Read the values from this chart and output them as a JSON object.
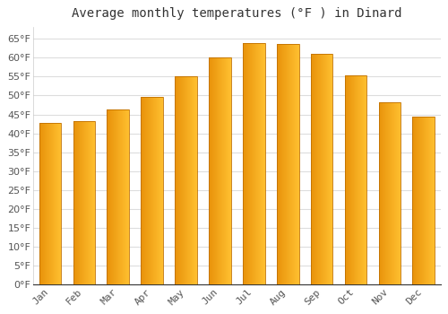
{
  "title": "Average monthly temperatures (°F ) in Dinard",
  "months": [
    "Jan",
    "Feb",
    "Mar",
    "Apr",
    "May",
    "Jun",
    "Jul",
    "Aug",
    "Sep",
    "Oct",
    "Nov",
    "Dec"
  ],
  "values": [
    42.8,
    43.2,
    46.4,
    49.6,
    55.0,
    60.1,
    63.9,
    63.7,
    61.0,
    55.4,
    48.2,
    44.4
  ],
  "bar_color_left": "#E8920A",
  "bar_color_right": "#FFC030",
  "bar_edge_color": "#C07000",
  "background_color": "#ffffff",
  "grid_color": "#dddddd",
  "ylim": [
    0,
    68
  ],
  "yticks": [
    0,
    5,
    10,
    15,
    20,
    25,
    30,
    35,
    40,
    45,
    50,
    55,
    60,
    65
  ],
  "title_fontsize": 10,
  "tick_fontsize": 8,
  "tick_color": "#555555",
  "title_color": "#333333"
}
